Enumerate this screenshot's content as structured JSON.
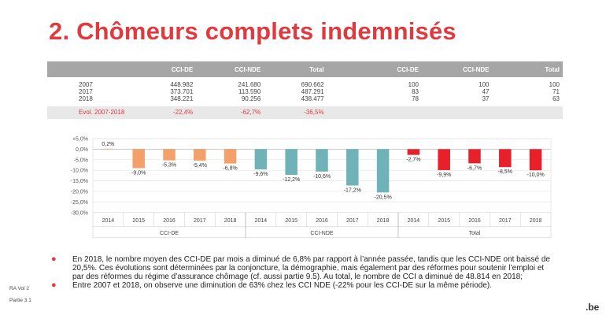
{
  "page": {
    "title": "2. Chômeurs complets indemnisés",
    "footer_line1": "RA Vol 2",
    "footer_line2": "Partie 3.1",
    "logo": ".be"
  },
  "table": {
    "headers": [
      "",
      "CCI-DE",
      "CCI-NDE",
      "Total",
      "",
      "CCI-DE",
      "CCI-NDE",
      "Total"
    ],
    "rows": [
      [
        "2007",
        "448.982",
        "241.680",
        "690.662",
        "",
        "100",
        "100",
        "100"
      ],
      [
        "2017",
        "373.701",
        "113.590",
        "487.291",
        "",
        "83",
        "47",
        "71"
      ],
      [
        "2018",
        "348.221",
        "90.256",
        "438.477",
        "",
        "78",
        "37",
        "63"
      ]
    ],
    "evol": [
      "Evol. 2007-2018",
      "-22,4%",
      "-62,7%",
      "-36,5%",
      "",
      "",
      "",
      ""
    ]
  },
  "chart_data": {
    "type": "bar",
    "ylim": [
      -30,
      5
    ],
    "y_ticks": [
      "+5,0%",
      "0,0%",
      "-5,0%",
      "-10,0%",
      "-15,0%",
      "-20,0%",
      "-25,0%",
      "-30,0%"
    ],
    "grid": true,
    "groups": [
      {
        "name": "CCI-DE",
        "color": "#f4a06a",
        "categories": [
          "2014",
          "2015",
          "2016",
          "2017",
          "2018"
        ],
        "values": [
          0.2,
          -9.0,
          -5.3,
          -5.4,
          -6.8
        ],
        "labels": [
          "0,2%",
          "-9,0%",
          "-5,3%",
          "-5,4%",
          "-6,8%"
        ]
      },
      {
        "name": "CCI-NDE",
        "color": "#6fb3b8",
        "categories": [
          "2014",
          "2015",
          "2016",
          "2017",
          "2018"
        ],
        "values": [
          -9.6,
          -12.2,
          -10.6,
          -17.2,
          -20.5
        ],
        "labels": [
          "-9,6%",
          "-12,2%",
          "-10,6%",
          "-17,2%",
          "-20,5%"
        ]
      },
      {
        "name": "Total",
        "color": "#e8202a",
        "categories": [
          "2014",
          "2015",
          "2016",
          "2017",
          "2018"
        ],
        "values": [
          -2.7,
          -9.9,
          -6.7,
          -8.5,
          -10.0
        ],
        "labels": [
          "-2,7%",
          "-9,9%",
          "-6,7%",
          "-8,5%",
          "-10,0%"
        ]
      }
    ]
  },
  "bullets": [
    "En 2018, le nombre moyen des CCI-DE par mois a diminué de 6,8% par rapport à l’année passée, tandis que les CCI-NDE ont baissé de 20,5%. Ces évolutions sont déterminées par la conjoncture, la démographie, mais également par des réformes pour soutenir l’emploi et par des réformes du régime d’assurance chômage (cf. aussi partie 9.5). Au total, le nombre de CCI a diminué de 48.814 en 2018;",
    "Entre 2007 et 2018, on observe une diminution de 63% chez les CCI NDE (-22% pour les CCI-DE sur la même période)."
  ]
}
